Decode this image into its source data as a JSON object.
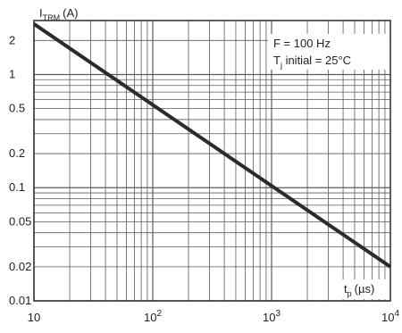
{
  "chart_data": {
    "type": "line",
    "y_axis_label": {
      "main": "I",
      "sub": "TRM",
      "unit": "(A)"
    },
    "x_axis_label": {
      "main": "t",
      "sub": "p",
      "unit": "(µs)"
    },
    "x_scale": "log",
    "y_scale": "log",
    "xlim": [
      10,
      10000
    ],
    "ylim": [
      0.01,
      3
    ],
    "grid": true,
    "x_ticks": [
      {
        "value": 10,
        "base": "10",
        "exp": ""
      },
      {
        "value": 100,
        "base": "10",
        "exp": "2"
      },
      {
        "value": 1000,
        "base": "10",
        "exp": "3"
      },
      {
        "value": 10000,
        "base": "10",
        "exp": "4"
      }
    ],
    "y_ticks": [
      {
        "value": 2,
        "label": "2"
      },
      {
        "value": 1,
        "label": "1"
      },
      {
        "value": 0.5,
        "label": "0.5"
      },
      {
        "value": 0.2,
        "label": "0.2"
      },
      {
        "value": 0.1,
        "label": "0.1"
      },
      {
        "value": 0.05,
        "label": "0.05"
      },
      {
        "value": 0.02,
        "label": "0.02"
      },
      {
        "value": 0.01,
        "label": "0.01"
      }
    ],
    "annotations": [
      {
        "main": "F = 100 Hz"
      },
      {
        "main": "T",
        "sub": "j",
        "rest": " initial = 25°C"
      }
    ],
    "series": [
      {
        "x": [
          10,
          10000
        ],
        "y": [
          2.8,
          0.02
        ]
      }
    ],
    "colors": {
      "line": "#2b2b2b",
      "grid": "#5a5a5a",
      "text": "#222222"
    }
  }
}
